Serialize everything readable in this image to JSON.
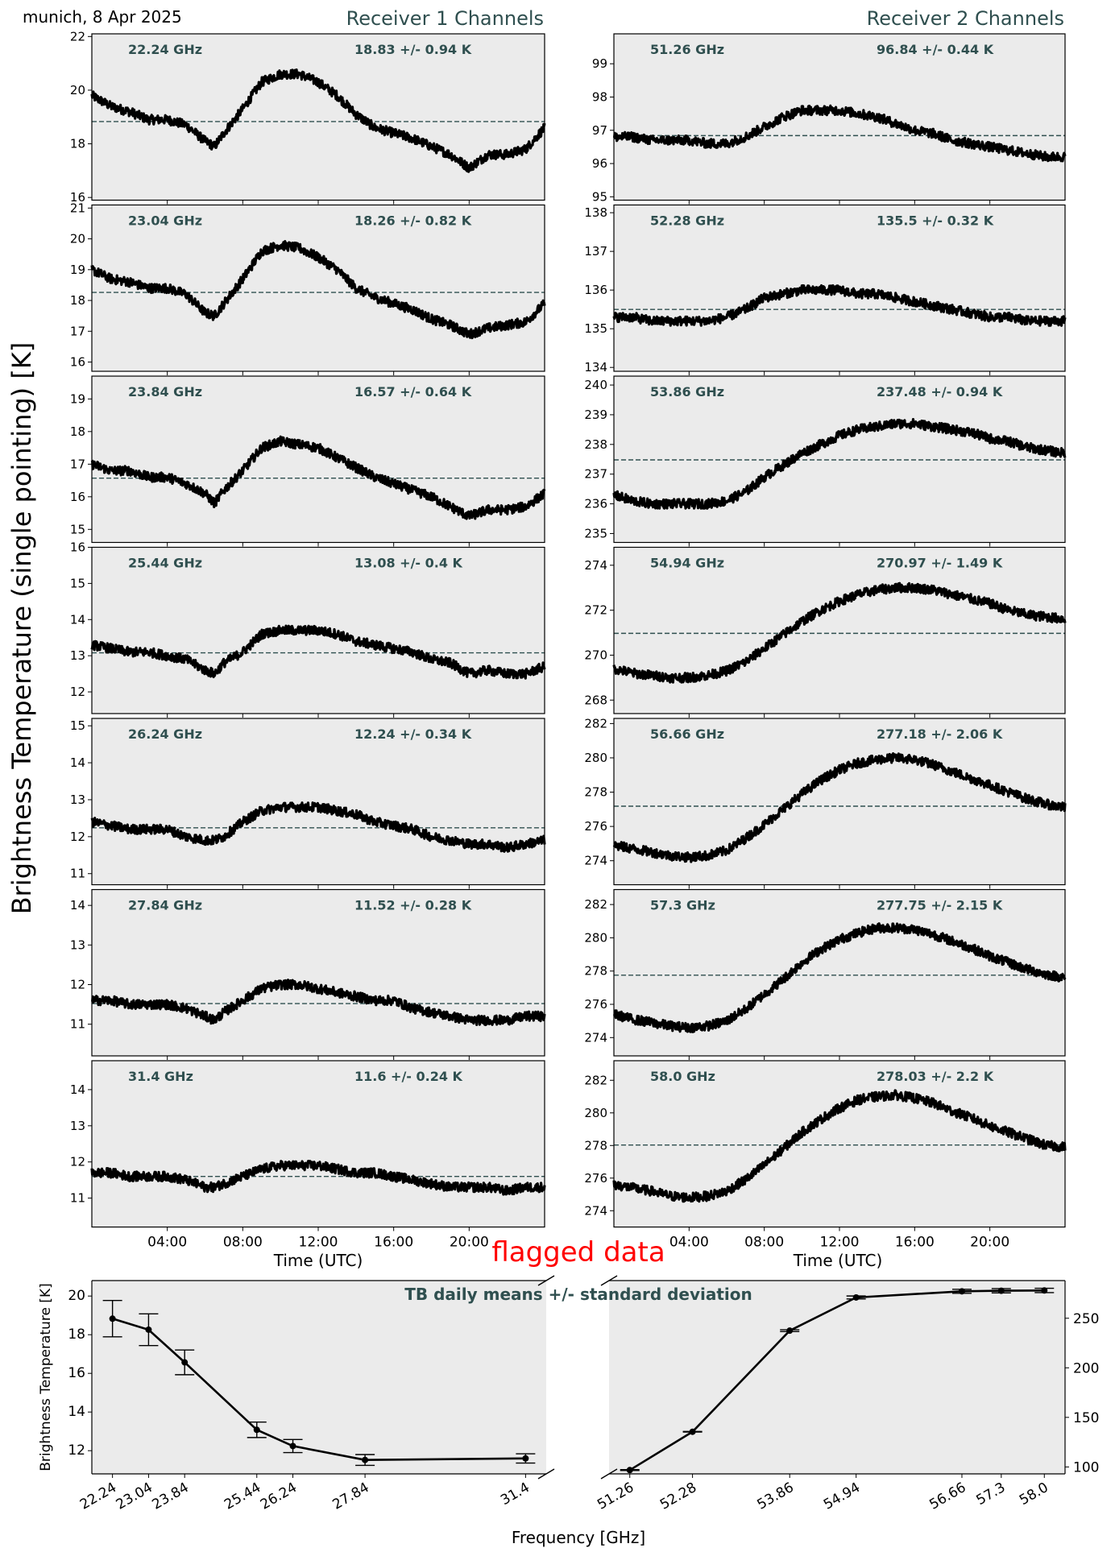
{
  "header": {
    "location_date": "munich, 8 Apr 2025",
    "receiver1_title": "Receiver 1 Channels",
    "receiver2_title": "Receiver 2 Channels"
  },
  "y_axis_label": "Brightness Temperature (single pointing) [K]",
  "x_axis_label": "Time (UTC)",
  "flag_label": "flagged data",
  "colors": {
    "panel_bg": "#ebebeb",
    "series": "#000000",
    "mean_line": "#2f4f4f",
    "annotation": "#2f4f4f",
    "flag": "#ff0000"
  },
  "time_ticks": [
    "04:00",
    "08:00",
    "12:00",
    "16:00",
    "20:00"
  ],
  "chart_data": [
    {
      "type": "scatter",
      "receiver": 1,
      "freq_label": "22.24 GHz",
      "stat_label": "18.83 +/- 0.94 K",
      "mean": 18.83,
      "ylim": [
        15.9,
        22.1
      ],
      "yticks": [
        16,
        18,
        20,
        22
      ],
      "x_hours": [
        0,
        1,
        2,
        3,
        4,
        5,
        6,
        6.5,
        7,
        8,
        9,
        10,
        11,
        12,
        13,
        14,
        15,
        16,
        17,
        18,
        19,
        20,
        21,
        22,
        23,
        24
      ],
      "y": [
        19.8,
        19.4,
        19.2,
        18.9,
        18.9,
        18.7,
        18.1,
        17.9,
        18.4,
        19.3,
        20.3,
        20.6,
        20.6,
        20.3,
        19.8,
        19.1,
        18.6,
        18.4,
        18.2,
        17.9,
        17.6,
        17.1,
        17.6,
        17.6,
        17.8,
        18.6
      ]
    },
    {
      "type": "scatter",
      "receiver": 1,
      "freq_label": "23.04 GHz",
      "stat_label": "18.26 +/- 0.82 K",
      "mean": 18.26,
      "ylim": [
        15.7,
        21.1
      ],
      "yticks": [
        16,
        17,
        18,
        19,
        20,
        21
      ],
      "x_hours": [
        0,
        1,
        2,
        3,
        4,
        5,
        6,
        6.5,
        7,
        8,
        9,
        10,
        11,
        12,
        13,
        14,
        15,
        16,
        17,
        18,
        19,
        20,
        21,
        22,
        23,
        24
      ],
      "y": [
        19.0,
        18.7,
        18.6,
        18.4,
        18.4,
        18.2,
        17.6,
        17.5,
        17.9,
        18.7,
        19.6,
        19.8,
        19.7,
        19.4,
        19.0,
        18.4,
        18.1,
        17.9,
        17.7,
        17.4,
        17.2,
        16.9,
        17.1,
        17.2,
        17.3,
        17.9
      ]
    },
    {
      "type": "scatter",
      "receiver": 1,
      "freq_label": "23.84 GHz",
      "stat_label": "16.57 +/- 0.64 K",
      "mean": 16.57,
      "ylim": [
        14.6,
        19.7
      ],
      "yticks": [
        15,
        16,
        17,
        18,
        19
      ],
      "x_hours": [
        0,
        1,
        2,
        3,
        4,
        5,
        6,
        6.5,
        7,
        8,
        9,
        10,
        11,
        12,
        13,
        14,
        15,
        16,
        17,
        18,
        19,
        20,
        21,
        22,
        23,
        24
      ],
      "y": [
        17.0,
        16.8,
        16.8,
        16.6,
        16.6,
        16.4,
        16.1,
        15.8,
        16.2,
        16.8,
        17.5,
        17.7,
        17.6,
        17.5,
        17.2,
        16.9,
        16.6,
        16.4,
        16.2,
        16.0,
        15.7,
        15.4,
        15.6,
        15.6,
        15.7,
        16.1
      ]
    },
    {
      "type": "scatter",
      "receiver": 1,
      "freq_label": "25.44 GHz",
      "stat_label": "13.08 +/- 0.4 K",
      "mean": 13.08,
      "ylim": [
        11.4,
        16.0
      ],
      "yticks": [
        12,
        13,
        14,
        15,
        16
      ],
      "x_hours": [
        0,
        1,
        2,
        3,
        4,
        5,
        6,
        6.5,
        7,
        8,
        9,
        10,
        11,
        12,
        13,
        14,
        15,
        16,
        17,
        18,
        19,
        20,
        21,
        22,
        23,
        24
      ],
      "y": [
        13.3,
        13.2,
        13.1,
        13.1,
        13.0,
        12.9,
        12.6,
        12.5,
        12.8,
        13.1,
        13.6,
        13.7,
        13.7,
        13.7,
        13.6,
        13.4,
        13.3,
        13.2,
        13.1,
        12.9,
        12.8,
        12.5,
        12.6,
        12.5,
        12.5,
        12.7
      ]
    },
    {
      "type": "scatter",
      "receiver": 1,
      "freq_label": "26.24 GHz",
      "stat_label": "12.24 +/- 0.34 K",
      "mean": 12.24,
      "ylim": [
        10.7,
        15.2
      ],
      "yticks": [
        11,
        12,
        13,
        14,
        15
      ],
      "x_hours": [
        0,
        1,
        2,
        3,
        4,
        5,
        6,
        6.5,
        7,
        8,
        9,
        10,
        11,
        12,
        13,
        14,
        15,
        16,
        17,
        18,
        19,
        20,
        21,
        22,
        23,
        24
      ],
      "y": [
        12.4,
        12.3,
        12.2,
        12.2,
        12.2,
        12.0,
        11.9,
        11.9,
        12.0,
        12.4,
        12.7,
        12.8,
        12.8,
        12.8,
        12.7,
        12.6,
        12.4,
        12.3,
        12.2,
        12.0,
        11.9,
        11.8,
        11.8,
        11.7,
        11.8,
        11.9
      ]
    },
    {
      "type": "scatter",
      "receiver": 1,
      "freq_label": "27.84 GHz",
      "stat_label": "11.52 +/- 0.28 K",
      "mean": 11.52,
      "ylim": [
        10.2,
        14.4
      ],
      "yticks": [
        11,
        12,
        13,
        14
      ],
      "x_hours": [
        0,
        1,
        2,
        3,
        4,
        5,
        6,
        6.5,
        7,
        8,
        9,
        10,
        11,
        12,
        13,
        14,
        15,
        16,
        17,
        18,
        19,
        20,
        21,
        22,
        23,
        24
      ],
      "y": [
        11.6,
        11.6,
        11.5,
        11.5,
        11.5,
        11.4,
        11.2,
        11.1,
        11.3,
        11.6,
        11.9,
        12.0,
        12.0,
        11.9,
        11.8,
        11.7,
        11.6,
        11.6,
        11.4,
        11.3,
        11.2,
        11.1,
        11.1,
        11.1,
        11.2,
        11.2
      ]
    },
    {
      "type": "scatter",
      "receiver": 1,
      "freq_label": "31.4 GHz",
      "stat_label": "11.6 +/- 0.24 K",
      "mean": 11.6,
      "ylim": [
        10.2,
        14.8
      ],
      "yticks": [
        11,
        12,
        13,
        14
      ],
      "x_hours": [
        0,
        1,
        2,
        3,
        4,
        5,
        6,
        6.5,
        7,
        8,
        9,
        10,
        11,
        12,
        13,
        14,
        15,
        16,
        17,
        18,
        19,
        20,
        21,
        22,
        23,
        24
      ],
      "y": [
        11.7,
        11.7,
        11.6,
        11.6,
        11.6,
        11.5,
        11.3,
        11.3,
        11.4,
        11.6,
        11.8,
        11.9,
        11.9,
        11.9,
        11.8,
        11.7,
        11.7,
        11.6,
        11.5,
        11.4,
        11.3,
        11.3,
        11.3,
        11.2,
        11.3,
        11.3
      ]
    },
    {
      "type": "scatter",
      "receiver": 2,
      "freq_label": "51.26 GHz",
      "stat_label": "96.84 +/- 0.44 K",
      "mean": 96.84,
      "ylim": [
        94.9,
        99.9
      ],
      "yticks": [
        95,
        96,
        97,
        98,
        99
      ],
      "x_hours": [
        0,
        1,
        2,
        3,
        4,
        5,
        6,
        7,
        8,
        9,
        10,
        11,
        12,
        13,
        14,
        15,
        16,
        17,
        18,
        19,
        20,
        21,
        22,
        23,
        24
      ],
      "y": [
        96.8,
        96.8,
        96.7,
        96.7,
        96.7,
        96.6,
        96.6,
        96.8,
        97.1,
        97.4,
        97.6,
        97.6,
        97.6,
        97.5,
        97.4,
        97.2,
        97.0,
        96.9,
        96.7,
        96.6,
        96.5,
        96.4,
        96.3,
        96.2,
        96.2
      ]
    },
    {
      "type": "scatter",
      "receiver": 2,
      "freq_label": "52.28 GHz",
      "stat_label": "135.5 +/- 0.32 K",
      "mean": 135.5,
      "ylim": [
        133.9,
        138.2
      ],
      "yticks": [
        134,
        135,
        136,
        137,
        138
      ],
      "x_hours": [
        0,
        1,
        2,
        3,
        4,
        5,
        6,
        7,
        8,
        9,
        10,
        11,
        12,
        13,
        14,
        15,
        16,
        17,
        18,
        19,
        20,
        21,
        22,
        23,
        24
      ],
      "y": [
        135.3,
        135.3,
        135.2,
        135.2,
        135.2,
        135.2,
        135.3,
        135.5,
        135.8,
        135.9,
        136.0,
        136.0,
        136.0,
        135.9,
        135.9,
        135.8,
        135.7,
        135.6,
        135.5,
        135.4,
        135.3,
        135.3,
        135.2,
        135.2,
        135.2
      ]
    },
    {
      "type": "scatter",
      "receiver": 2,
      "freq_label": "53.86 GHz",
      "stat_label": "237.48 +/- 0.94 K",
      "mean": 237.48,
      "ylim": [
        234.7,
        240.3
      ],
      "yticks": [
        235,
        236,
        237,
        238,
        239,
        240
      ],
      "x_hours": [
        0,
        1,
        2,
        3,
        4,
        5,
        6,
        7,
        8,
        9,
        10,
        11,
        12,
        13,
        14,
        15,
        16,
        17,
        18,
        19,
        20,
        21,
        22,
        23,
        24
      ],
      "y": [
        236.3,
        236.1,
        236.0,
        236.0,
        236.0,
        236.0,
        236.1,
        236.4,
        236.9,
        237.3,
        237.7,
        238.0,
        238.3,
        238.5,
        238.6,
        238.7,
        238.7,
        238.6,
        238.5,
        238.4,
        238.2,
        238.1,
        237.9,
        237.8,
        237.7
      ]
    },
    {
      "type": "scatter",
      "receiver": 2,
      "freq_label": "54.94 GHz",
      "stat_label": "270.97 +/- 1.49 K",
      "mean": 270.97,
      "ylim": [
        267.4,
        274.8
      ],
      "yticks": [
        268,
        270,
        272,
        274
      ],
      "x_hours": [
        0,
        1,
        2,
        3,
        4,
        5,
        6,
        7,
        8,
        9,
        10,
        11,
        12,
        13,
        14,
        15,
        16,
        17,
        18,
        19,
        20,
        21,
        22,
        23,
        24
      ],
      "y": [
        269.4,
        269.2,
        269.1,
        269.0,
        269.0,
        269.1,
        269.3,
        269.7,
        270.3,
        270.9,
        271.5,
        272.0,
        272.4,
        272.7,
        272.9,
        273.0,
        273.0,
        272.9,
        272.7,
        272.5,
        272.3,
        272.0,
        271.8,
        271.7,
        271.6
      ]
    },
    {
      "type": "scatter",
      "receiver": 2,
      "freq_label": "56.66 GHz",
      "stat_label": "277.18 +/- 2.06 K",
      "mean": 277.18,
      "ylim": [
        272.6,
        282.3
      ],
      "yticks": [
        274,
        276,
        278,
        280,
        282
      ],
      "x_hours": [
        0,
        1,
        2,
        3,
        4,
        5,
        6,
        7,
        8,
        9,
        10,
        11,
        12,
        13,
        14,
        15,
        16,
        17,
        18,
        19,
        20,
        21,
        22,
        23,
        24
      ],
      "y": [
        274.9,
        274.7,
        274.5,
        274.3,
        274.2,
        274.3,
        274.6,
        275.3,
        276.1,
        277.0,
        277.9,
        278.7,
        279.3,
        279.7,
        279.9,
        280.0,
        279.9,
        279.6,
        279.2,
        278.8,
        278.4,
        278.0,
        277.6,
        277.3,
        277.1
      ]
    },
    {
      "type": "scatter",
      "receiver": 2,
      "freq_label": "57.3 GHz",
      "stat_label": "277.75 +/- 2.15 K",
      "mean": 277.75,
      "ylim": [
        272.9,
        282.9
      ],
      "yticks": [
        274,
        276,
        278,
        280,
        282
      ],
      "x_hours": [
        0,
        1,
        2,
        3,
        4,
        5,
        6,
        7,
        8,
        9,
        10,
        11,
        12,
        13,
        14,
        15,
        16,
        17,
        18,
        19,
        20,
        21,
        22,
        23,
        24
      ],
      "y": [
        275.4,
        275.1,
        274.9,
        274.7,
        274.6,
        274.7,
        275.0,
        275.7,
        276.6,
        277.5,
        278.5,
        279.3,
        279.9,
        280.3,
        280.6,
        280.6,
        280.5,
        280.2,
        279.8,
        279.4,
        278.9,
        278.5,
        278.1,
        277.8,
        277.6
      ]
    },
    {
      "type": "scatter",
      "receiver": 2,
      "freq_label": "58.0 GHz",
      "stat_label": "278.03 +/- 2.2 K",
      "mean": 278.03,
      "ylim": [
        273.0,
        283.2
      ],
      "yticks": [
        274,
        276,
        278,
        280,
        282
      ],
      "x_hours": [
        0,
        1,
        2,
        3,
        4,
        5,
        6,
        7,
        8,
        9,
        10,
        11,
        12,
        13,
        14,
        15,
        16,
        17,
        18,
        19,
        20,
        21,
        22,
        23,
        24
      ],
      "y": [
        275.6,
        275.4,
        275.2,
        274.9,
        274.8,
        274.9,
        275.2,
        275.9,
        276.8,
        277.8,
        278.8,
        279.6,
        280.3,
        280.8,
        281.0,
        281.1,
        280.9,
        280.6,
        280.1,
        279.7,
        279.2,
        278.8,
        278.4,
        278.0,
        277.9
      ]
    },
    {
      "type": "line",
      "title": "TB daily means +/- standard deviation",
      "xlabel": "Frequency [GHz]",
      "ylabel": "Brightness Temperature [K]",
      "left": {
        "x": [
          22.24,
          23.04,
          23.84,
          25.44,
          26.24,
          27.84,
          31.4
        ],
        "x_labels": [
          "22.24",
          "23.04",
          "23.84",
          "25.44",
          "26.24",
          "27.84",
          "31.4"
        ],
        "mean": [
          18.83,
          18.26,
          16.57,
          13.08,
          12.24,
          11.52,
          11.6
        ],
        "std": [
          0.94,
          0.82,
          0.64,
          0.4,
          0.34,
          0.28,
          0.24
        ],
        "ylim": [
          10.8,
          20.8
        ],
        "yticks": [
          12,
          14,
          16,
          18,
          20
        ]
      },
      "right": {
        "x": [
          51.26,
          52.28,
          53.86,
          54.94,
          56.66,
          57.3,
          58.0
        ],
        "x_labels": [
          "51.26",
          "52.28",
          "53.86",
          "54.94",
          "56.66",
          "57.3",
          "58.0"
        ],
        "mean": [
          96.84,
          135.5,
          237.48,
          270.97,
          277.18,
          277.75,
          278.03
        ],
        "std": [
          0.44,
          0.32,
          0.94,
          1.49,
          2.06,
          2.15,
          2.2
        ],
        "ylim": [
          93,
          288
        ],
        "yticks": [
          100,
          150,
          200,
          250
        ]
      }
    }
  ]
}
